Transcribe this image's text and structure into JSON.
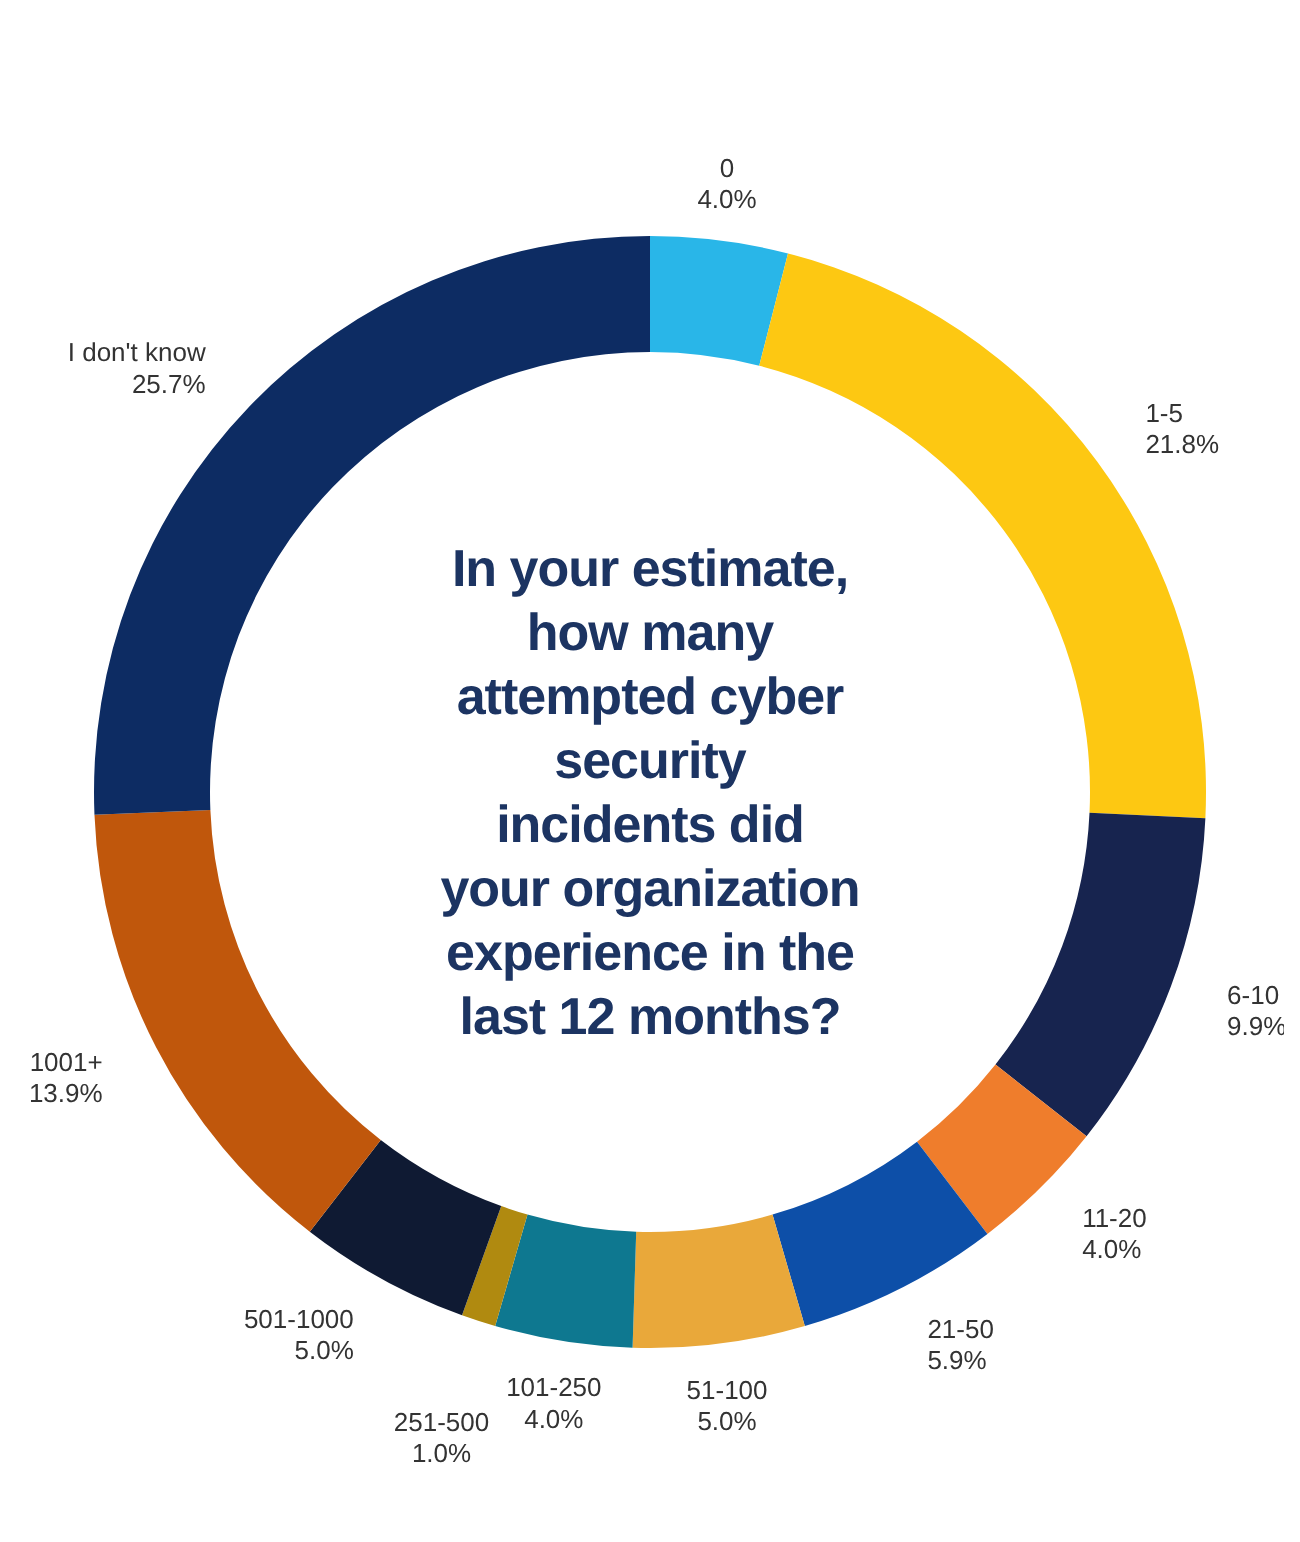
{
  "chart_data": {
    "type": "donut",
    "title": "In your estimate, how many attempted cyber security incidents did your organization experience in the last 12 months?",
    "categories": [
      "0",
      "1-5",
      "6-10",
      "11-20",
      "21-50",
      "51-100",
      "101-250",
      "251-500",
      "501-1000",
      "1001+",
      "I don't know"
    ],
    "values": [
      4.0,
      21.8,
      9.9,
      4.0,
      5.9,
      5.0,
      4.0,
      1.0,
      5.0,
      13.9,
      25.7
    ],
    "value_labels": [
      "4.0%",
      "21.8%",
      "9.9%",
      "4.0%",
      "5.9%",
      "5.0%",
      "4.0%",
      "1.0%",
      "5.0%",
      "13.9%",
      "25.7%"
    ],
    "colors": [
      "#29b6e8",
      "#fdc812",
      "#17244f",
      "#ef7d2c",
      "#0d4fa8",
      "#e9a83a",
      "#0e7890",
      "#b08a10",
      "#0f1a33",
      "#c0570c",
      "#0d2c63"
    ]
  }
}
